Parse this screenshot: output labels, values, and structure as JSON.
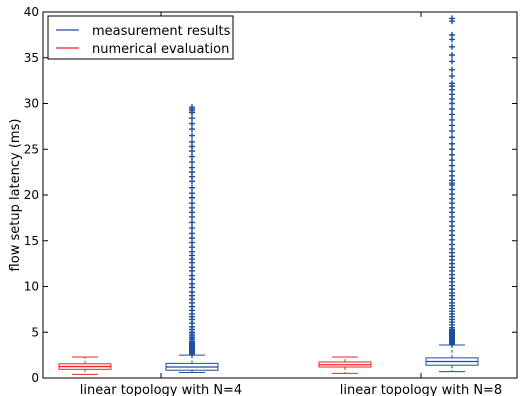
{
  "chart_data": {
    "type": "box",
    "categories": [
      "linear topology with N=4",
      "linear topology with N=8"
    ],
    "xlabel": "",
    "ylabel": "flow setup latency (ms)",
    "ylim": [
      0,
      40
    ],
    "yticks": [
      0,
      5,
      10,
      15,
      20,
      25,
      30,
      35,
      40
    ],
    "grid": false,
    "legend_position": "top-left",
    "series": [
      {
        "name": "numerical evaluation",
        "color": "#e8242a",
        "boxes": [
          {
            "category": "linear topology with N=4",
            "whisker_low": 0.4,
            "q1": 0.95,
            "median": 1.25,
            "q3": 1.55,
            "whisker_high": 2.3,
            "outliers": []
          },
          {
            "category": "linear topology with N=8",
            "whisker_low": 0.5,
            "q1": 1.2,
            "median": 1.45,
            "q3": 1.75,
            "whisker_high": 2.3,
            "outliers": []
          }
        ]
      },
      {
        "name": "measurement results",
        "color": "#1f4e9c",
        "boxes": [
          {
            "category": "linear topology with N=4",
            "whisker_low": 0.6,
            "q1": 0.85,
            "median": 1.2,
            "q3": 1.6,
            "whisker_high": 2.5,
            "outliers": [
              2.6,
              2.7,
              2.8,
              2.9,
              3.0,
              3.1,
              3.2,
              3.3,
              3.4,
              3.5,
              3.6,
              3.7,
              3.8,
              3.9,
              4.0,
              4.2,
              4.4,
              4.6,
              4.8,
              5.0,
              5.3,
              5.6,
              6.0,
              6.4,
              6.7,
              7.0,
              7.4,
              7.8,
              8.2,
              8.6,
              9.0,
              9.4,
              9.9,
              10.3,
              10.8,
              11.2,
              11.7,
              12.1,
              12.6,
              13.0,
              13.4,
              13.8,
              14.3,
              14.8,
              15.3,
              15.8,
              16.4,
              17.0,
              17.6,
              18.1,
              18.6,
              19.1,
              19.7,
              20.2,
              20.8,
              21.5,
              22.0,
              22.5,
              23.0,
              23.6,
              24.2,
              24.8,
              25.3,
              25.8,
              26.5,
              27.2,
              27.8,
              28.4,
              29.0,
              29.2,
              29.4,
              29.6
            ]
          },
          {
            "category": "linear topology with N=8",
            "whisker_low": 0.7,
            "q1": 1.4,
            "median": 1.8,
            "q3": 2.2,
            "whisker_high": 3.6,
            "outliers": [
              3.7,
              3.8,
              3.9,
              4.0,
              4.1,
              4.2,
              4.3,
              4.4,
              4.5,
              4.6,
              4.7,
              4.8,
              4.9,
              5.0,
              5.1,
              5.2,
              5.3,
              5.5,
              5.8,
              6.1,
              6.4,
              6.7,
              7.0,
              7.3,
              7.6,
              7.9,
              8.2,
              8.6,
              9.0,
              9.3,
              9.7,
              10.1,
              10.5,
              10.9,
              11.3,
              11.7,
              12.1,
              12.5,
              12.9,
              13.3,
              13.7,
              14.1,
              14.6,
              15.1,
              15.6,
              16.1,
              16.6,
              17.1,
              17.6,
              18.1,
              18.6,
              19.1,
              19.6,
              20.1,
              20.6,
              21.1,
              21.3,
              21.6,
              22.1,
              22.6,
              23.2,
              23.8,
              24.4,
              25.0,
              25.6,
              26.3,
              27.0,
              27.6,
              28.2,
              28.8,
              29.4,
              30.0,
              30.5,
              31.0,
              31.5,
              31.9,
              32.2,
              33.0,
              33.7,
              34.6,
              35.3,
              36.2,
              37.0,
              37.5,
              39.0,
              39.3
            ]
          }
        ]
      }
    ]
  }
}
